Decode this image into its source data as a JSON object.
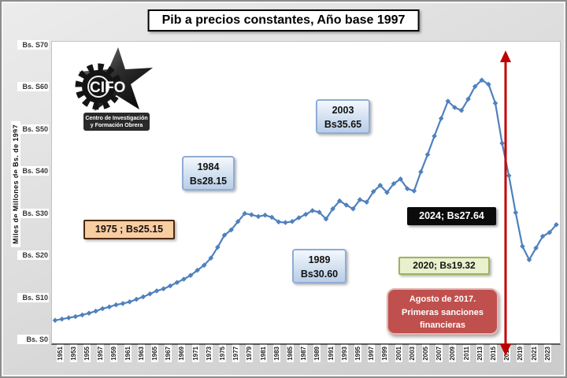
{
  "title": "Pib a precios constantes, Año base 1997",
  "y_axis_title": "Miles de Millones de Bs. de 1997",
  "logo": {
    "acronym": "CIFO",
    "line1": "Centro de Investigación",
    "line2": "y Formación Obrera"
  },
  "annotations": {
    "a1975": "1975 ; Bs25.15",
    "a1984_year": "1984",
    "a1984_value": "Bs28.15",
    "a2003_year": "2003",
    "a2003_value": "Bs35.65",
    "a1989_year": "1989",
    "a1989_value": "Bs30.60",
    "a2024": "2024; Bs27.64",
    "a2020": "2020; Bs19.32",
    "sanctions_line1": "Agosto de 2017.",
    "sanctions_line2": "Primeras sanciones",
    "sanctions_line3": "financieras"
  },
  "chart_data": {
    "type": "line",
    "title": "Pib a precios constantes, Año base 1997",
    "xlabel": "",
    "ylabel": "Miles de Millones de Bs. de 1997",
    "ylim": [
      0,
      70
    ],
    "grid": false,
    "legend": "none",
    "marker": "diamond",
    "line_color": "#4f81bd",
    "x_start": 1950,
    "x_end": 2024,
    "y_ticks": [
      {
        "label": "Bs. S0",
        "value": 0
      },
      {
        "label": "Bs. S10",
        "value": 10
      },
      {
        "label": "Bs. S20",
        "value": 20
      },
      {
        "label": "Bs. S30",
        "value": 30
      },
      {
        "label": "Bs. S40",
        "value": 40
      },
      {
        "label": "Bs. S50",
        "value": 50
      },
      {
        "label": "Bs. S60",
        "value": 60
      },
      {
        "label": "Bs. S70",
        "value": 70
      }
    ],
    "x_tick_years": [
      1951,
      1953,
      1955,
      1957,
      1959,
      1961,
      1963,
      1965,
      1967,
      1969,
      1971,
      1973,
      1975,
      1977,
      1979,
      1981,
      1983,
      1985,
      1987,
      1989,
      1991,
      1993,
      1995,
      1997,
      1999,
      2001,
      2003,
      2005,
      2007,
      2009,
      2011,
      2013,
      2015,
      2017,
      2019,
      2021,
      2023
    ],
    "series": [
      {
        "name": "PIB a precios constantes (miles de millones de Bs. de 1997)",
        "values": [
          4.9,
          5.2,
          5.5,
          5.8,
          6.2,
          6.6,
          7.1,
          7.7,
          8.1,
          8.6,
          8.9,
          9.3,
          9.9,
          10.5,
          11.2,
          11.9,
          12.4,
          13.1,
          13.9,
          14.7,
          15.6,
          16.8,
          18.0,
          19.7,
          22.3,
          25.15,
          26.4,
          28.4,
          30.3,
          30.0,
          29.6,
          29.9,
          29.4,
          28.3,
          28.15,
          28.4,
          29.3,
          30.1,
          31.0,
          30.6,
          29.0,
          31.4,
          33.3,
          32.3,
          31.4,
          33.6,
          33.0,
          35.5,
          37.0,
          35.3,
          37.4,
          38.5,
          36.2,
          35.65,
          40.2,
          44.3,
          48.7,
          52.9,
          57.0,
          55.5,
          54.8,
          57.5,
          60.5,
          62.0,
          61.0,
          56.5,
          47.0,
          39.3,
          30.5,
          22.5,
          19.32,
          22.1,
          24.9,
          25.8,
          27.64
        ]
      }
    ],
    "event_arrow": {
      "year": 2017,
      "color": "#c00000",
      "label": "Agosto de 2017. Primeras sanciones financieras"
    }
  }
}
